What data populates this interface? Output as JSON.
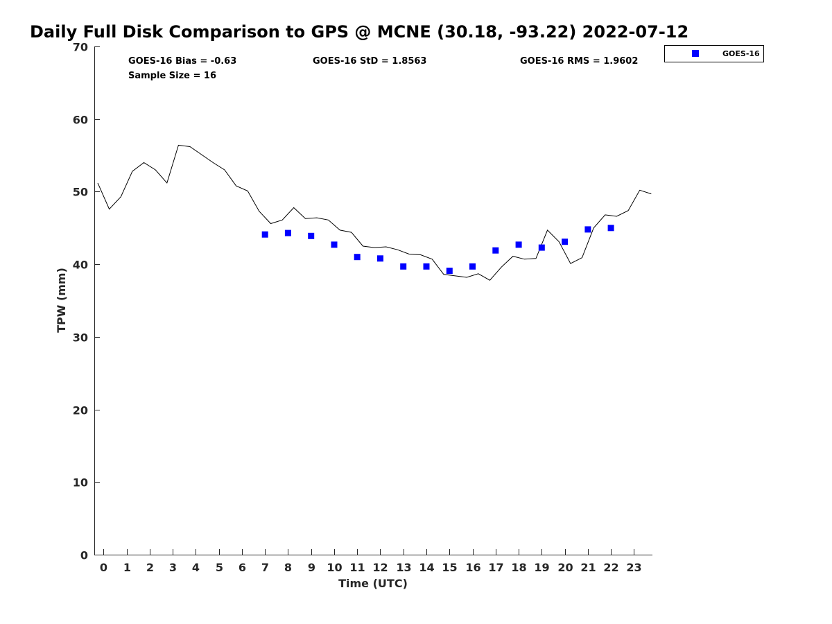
{
  "chart_data": {
    "type": "scatter",
    "title": "Daily Full Disk Comparison to GPS @ MCNE (30.18, -93.22) 2022-07-12",
    "xlabel": "Time (UTC)",
    "ylabel": "TPW (mm)",
    "xlim": [
      -0.4,
      23.8
    ],
    "ylim": [
      0,
      70
    ],
    "x_ticks": [
      0,
      1,
      2,
      3,
      4,
      5,
      6,
      7,
      8,
      9,
      10,
      11,
      12,
      13,
      14,
      15,
      16,
      17,
      18,
      19,
      20,
      21,
      22,
      23
    ],
    "y_ticks": [
      0,
      10,
      20,
      30,
      40,
      50,
      60,
      70
    ],
    "grid": false,
    "legend_position": "top-right, outside plot area",
    "stats": {
      "bias": "GOES-16 Bias = -0.63",
      "std": "GOES-16 StD = 1.8563",
      "rms": "GOES-16 RMS = 1.9602",
      "sample_size": "Sample Size = 16"
    },
    "series": [
      {
        "name": "GOES-16",
        "kind": "scatter",
        "marker": "square",
        "color": "#0000ff",
        "x": [
          7,
          8,
          9,
          10,
          11,
          12,
          13,
          14,
          15,
          16,
          17,
          18,
          19,
          20,
          21,
          22
        ],
        "y": [
          44.1,
          44.3,
          43.9,
          42.7,
          41.0,
          40.8,
          39.7,
          39.7,
          39.1,
          39.7,
          41.9,
          42.7,
          42.3,
          43.1,
          44.8,
          45.0
        ]
      },
      {
        "kind": "line",
        "color": "#000000",
        "x": [
          -0.25,
          0.25,
          0.75,
          1.25,
          1.75,
          2.25,
          2.75,
          3.25,
          3.75,
          4.25,
          4.75,
          5.25,
          5.75,
          6.25,
          6.75,
          7.25,
          7.75,
          8.25,
          8.75,
          9.25,
          9.75,
          10.25,
          10.75,
          11.25,
          11.75,
          12.25,
          12.75,
          13.25,
          13.75,
          14.25,
          14.75,
          15.25,
          15.75,
          16.25,
          16.75,
          17.25,
          17.75,
          18.25,
          18.75,
          19.25,
          19.75,
          20.25,
          20.75,
          21.25,
          21.75,
          22.25,
          22.75,
          23.25,
          23.75
        ],
        "y": [
          51.2,
          47.6,
          49.3,
          52.8,
          54.0,
          53.0,
          51.2,
          56.4,
          56.2,
          55.1,
          54.0,
          53.0,
          50.8,
          50.1,
          47.3,
          45.6,
          46.1,
          47.8,
          46.3,
          46.4,
          46.1,
          44.7,
          44.4,
          42.5,
          42.3,
          42.4,
          42.0,
          41.4,
          41.3,
          40.7,
          38.6,
          38.4,
          38.2,
          38.7,
          37.8,
          39.6,
          41.1,
          40.7,
          40.8,
          44.7,
          43.1,
          40.1,
          40.9,
          45.0,
          46.8,
          46.6,
          47.4,
          50.2,
          49.7
        ]
      }
    ]
  },
  "legend": {
    "entries": [
      {
        "label": "GOES-16",
        "color": "#0000ff",
        "marker": "square"
      }
    ]
  }
}
